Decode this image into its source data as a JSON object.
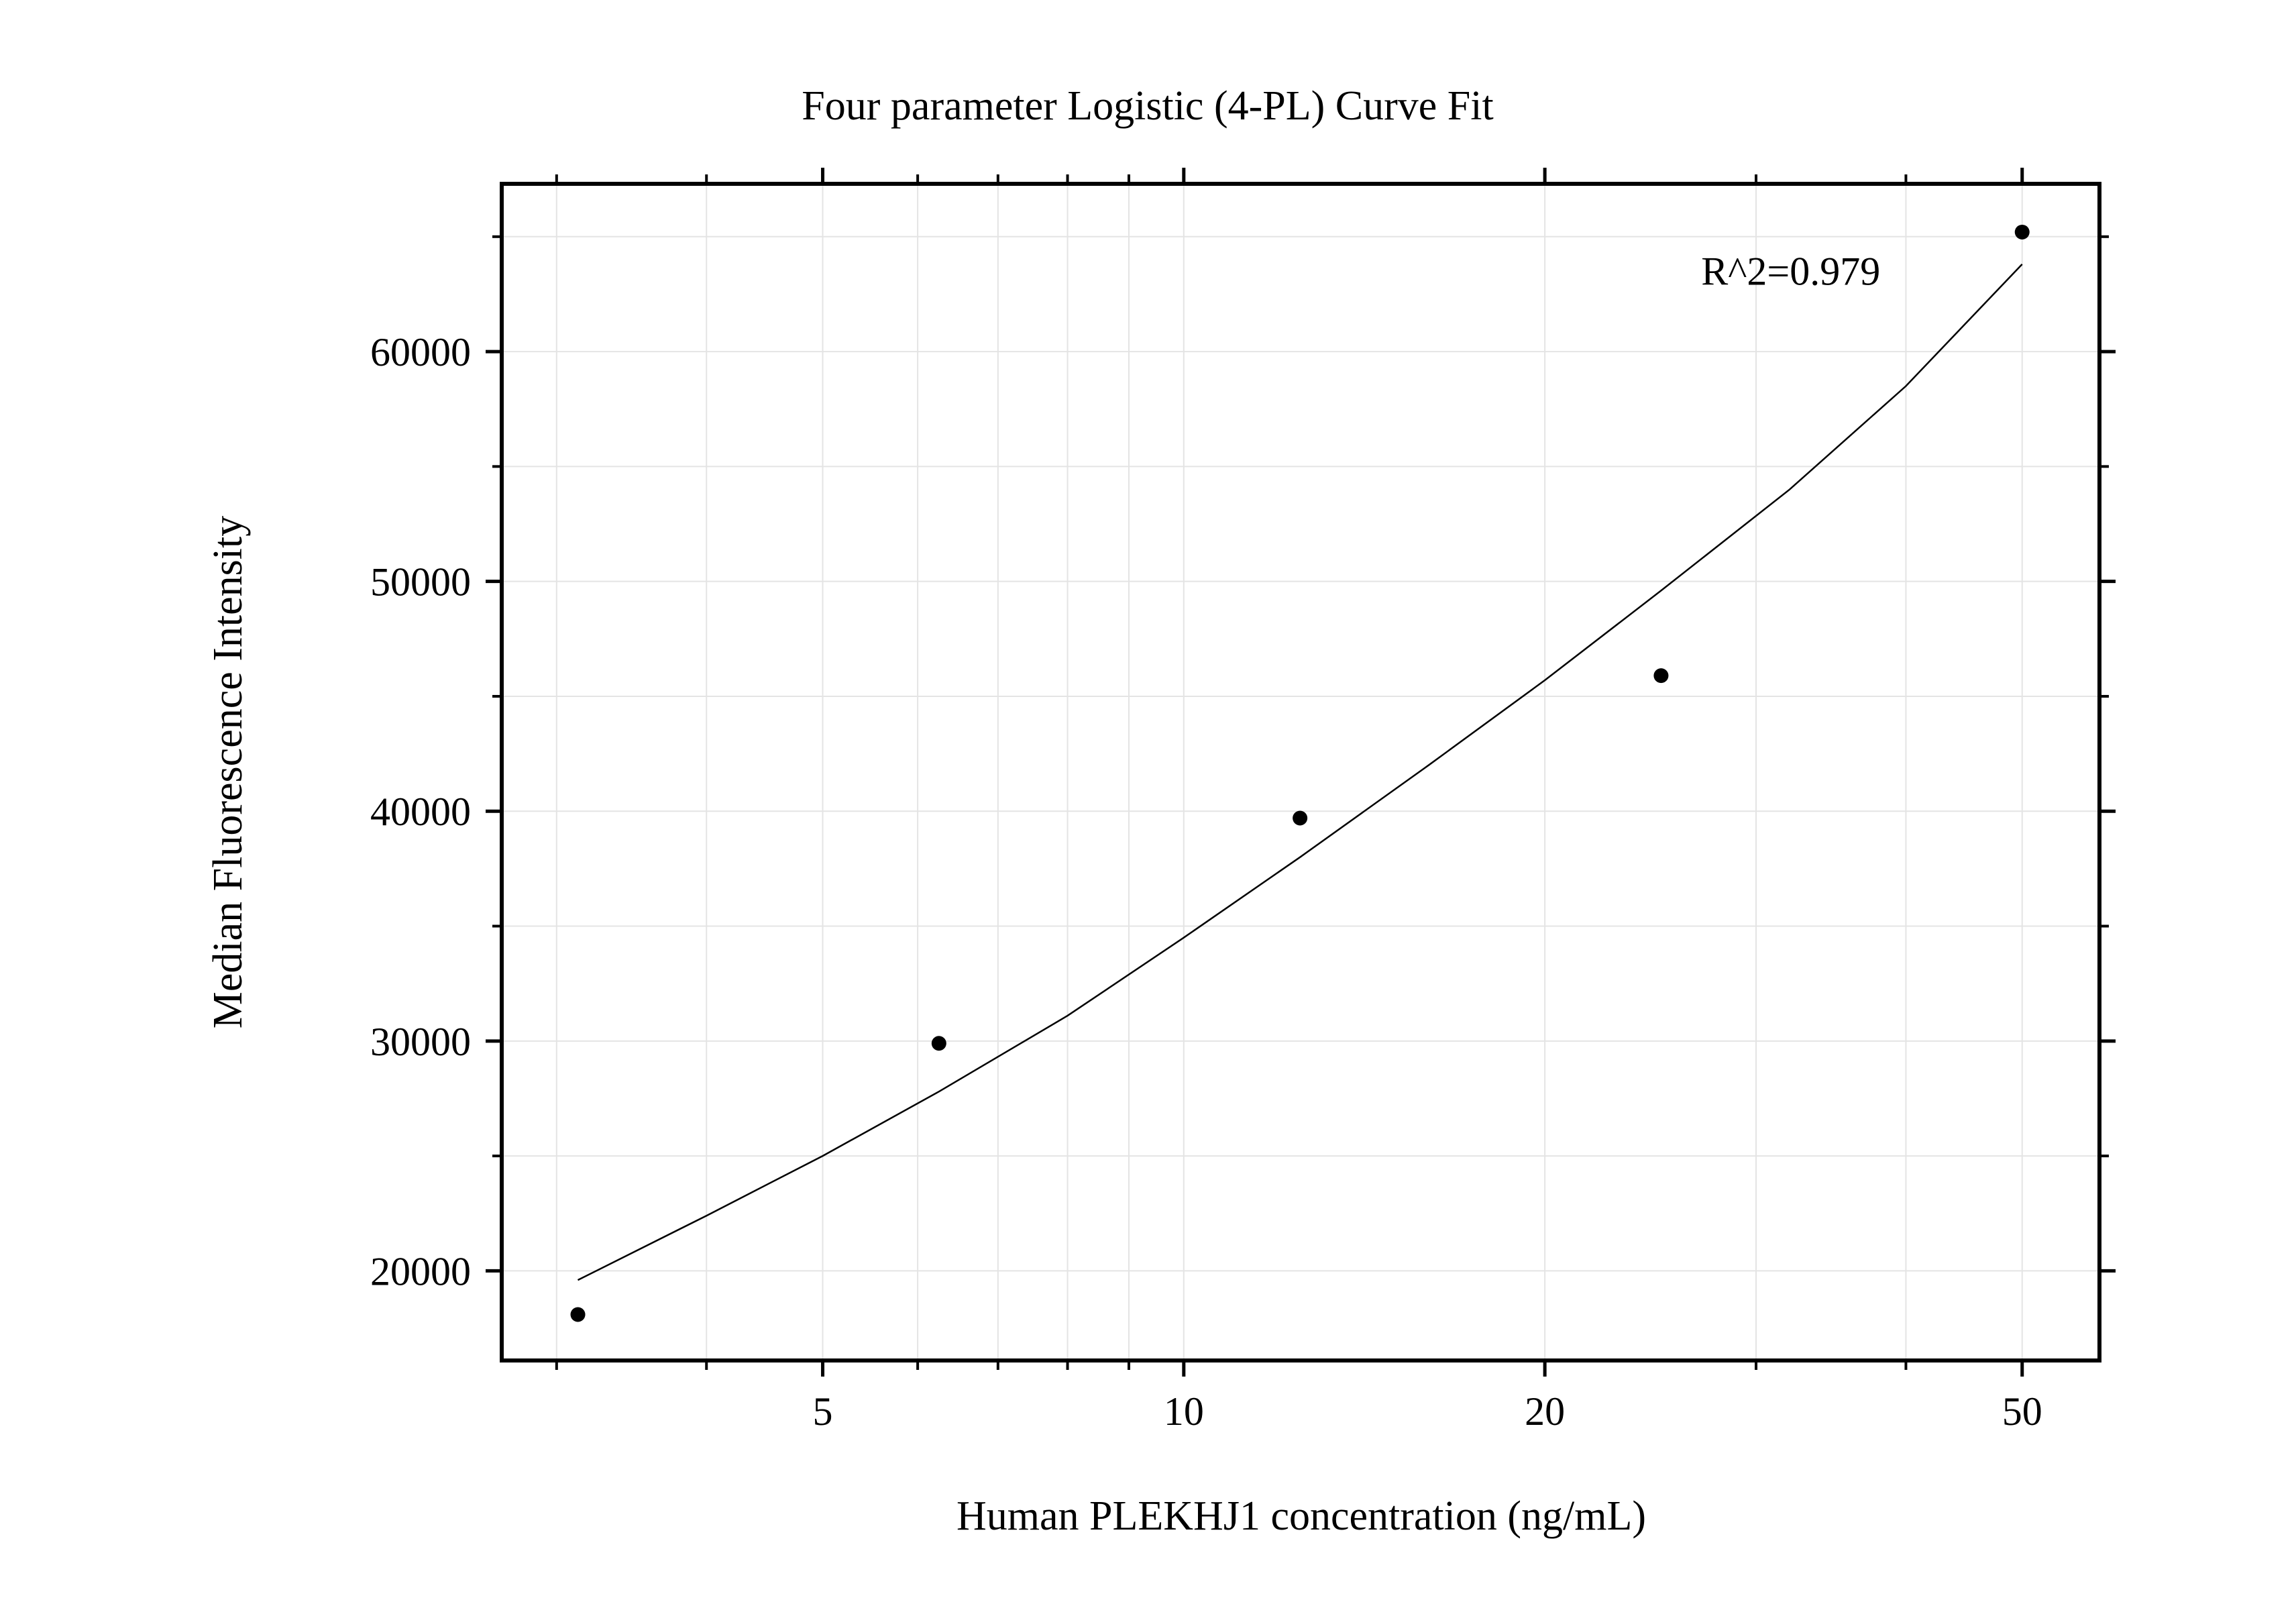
{
  "chart_data": {
    "type": "scatter",
    "title": "Four parameter Logistic (4-PL) Curve Fit",
    "xlabel": "Human PLEKHJ1 concentration (ng/mL)",
    "ylabel": "Median Fluorescence Intensity",
    "x_scale": "log",
    "xlim": [
      2.7,
      58
    ],
    "ylim": [
      16100,
      67300
    ],
    "x_ticks": [
      5,
      10,
      20,
      50
    ],
    "x_tick_labels": [
      "5",
      "10",
      "20",
      "50"
    ],
    "x_minor_ticks": [
      3,
      4,
      6,
      7,
      8,
      9,
      30,
      40
    ],
    "y_ticks": [
      20000,
      30000,
      40000,
      50000,
      60000
    ],
    "y_tick_labels": [
      "20000",
      "30000",
      "40000",
      "50000",
      "60000"
    ],
    "y_minor_ticks": [
      25000,
      35000,
      45000,
      55000,
      65000
    ],
    "grid": true,
    "series": [
      {
        "type": "scatter",
        "x": [
          3.125,
          6.25,
          12.5,
          25,
          50
        ],
        "y": [
          18100,
          29900,
          39700,
          45900,
          65200
        ]
      },
      {
        "type": "line",
        "fit": "4-PL",
        "x": [
          3.125,
          4,
          5,
          6.25,
          8,
          10,
          12.5,
          16,
          20,
          25,
          32,
          40,
          50
        ],
        "y": [
          19600,
          22400,
          25000,
          27800,
          31100,
          34500,
          38000,
          42000,
          45700,
          49600,
          54000,
          58500,
          63800
        ]
      }
    ],
    "annotations": [
      {
        "text": "R^2=0.979",
        "x": 27,
        "y": 62900
      }
    ],
    "colors": {
      "points": "#000000",
      "curve": "#000000",
      "grid": "#e4e4e4",
      "frame": "#000000"
    }
  }
}
